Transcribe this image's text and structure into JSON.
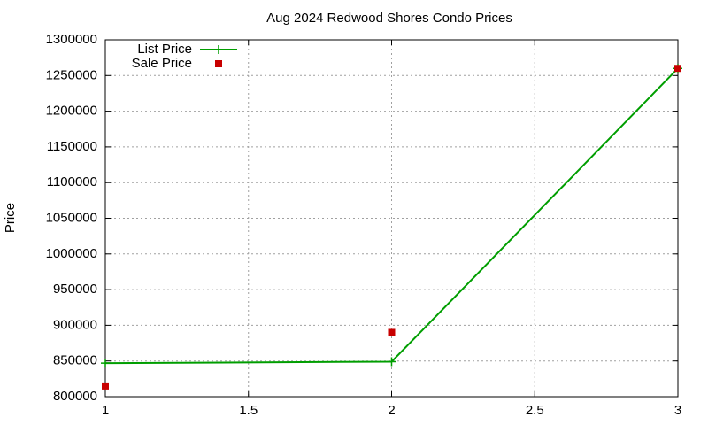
{
  "chart_data": {
    "type": "line",
    "title": "Aug 2024 Redwood Shores Condo Prices",
    "ylabel": "Price",
    "x": [
      1,
      2,
      3
    ],
    "series": [
      {
        "name": "List Price",
        "color": "#009e00",
        "style": "linespoints",
        "values": [
          847000,
          849000,
          1260000
        ]
      },
      {
        "name": "Sale Price",
        "color": "#c80000",
        "style": "points",
        "values": [
          815000,
          890000,
          1260000
        ]
      }
    ],
    "xlim": [
      1,
      3
    ],
    "xticks": [
      1,
      1.5,
      2,
      2.5,
      3
    ],
    "ylim": [
      800000,
      1300000
    ],
    "yticks": [
      800000,
      850000,
      900000,
      950000,
      1000000,
      1050000,
      1100000,
      1150000,
      1200000,
      1250000,
      1300000
    ],
    "grid": true,
    "legend": "top-left"
  }
}
